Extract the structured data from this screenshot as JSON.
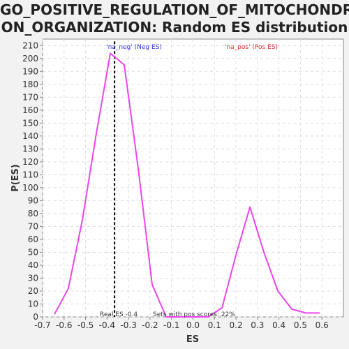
{
  "chart_data": {
    "type": "line",
    "title_line1": "GO_POSITIVE_REGULATION_OF_MITOCHONDRI",
    "title_line2": "ON_ORGANIZATION: Random ES distribution",
    "xlabel": "ES",
    "ylabel": "P(ES)",
    "xlim": [
      -0.7,
      0.7
    ],
    "ylim": [
      0,
      215
    ],
    "x_ticks": [
      -0.7,
      -0.6,
      -0.5,
      -0.4,
      -0.3,
      -0.2,
      -0.1,
      0.0,
      0.1,
      0.2,
      0.3,
      0.4,
      0.5,
      0.6
    ],
    "x_tick_labels": [
      "-0.7",
      "-0.6",
      "-0.5",
      "-0.4",
      "-0.3",
      "-0.2",
      "-0.1",
      "0.0",
      "0.1",
      "0.2",
      "0.3",
      "0.4",
      "0.5",
      "0.6"
    ],
    "y_ticks": [
      0,
      10,
      20,
      30,
      40,
      50,
      60,
      70,
      80,
      90,
      100,
      110,
      120,
      130,
      140,
      150,
      160,
      170,
      180,
      190,
      200,
      210
    ],
    "grid": true,
    "series": [
      {
        "color": "#ee44ee",
        "x": [
          -0.645,
          -0.58,
          -0.515,
          -0.45,
          -0.385,
          -0.32,
          -0.255,
          -0.19,
          -0.125,
          -0.06,
          0.005,
          0.07,
          0.135,
          0.2,
          0.265,
          0.33,
          0.395,
          0.46,
          0.525,
          0.59
        ],
        "y": [
          2,
          22,
          75,
          142,
          204,
          195,
          115,
          25,
          0,
          0,
          0,
          0,
          7,
          48,
          85,
          50,
          20,
          6,
          3,
          3
        ]
      }
    ],
    "real_es": -0.365,
    "annotations": {
      "neg_label": "'na_neg' (Neg ES)",
      "neg_color": "#3333dd",
      "pos_label": "'na_pos' (Pos ES)",
      "pos_color": "#dd3333",
      "real_es_text": "Real ES -0.4",
      "pos_scores_text": "Sets with pos scores: 22%"
    }
  }
}
